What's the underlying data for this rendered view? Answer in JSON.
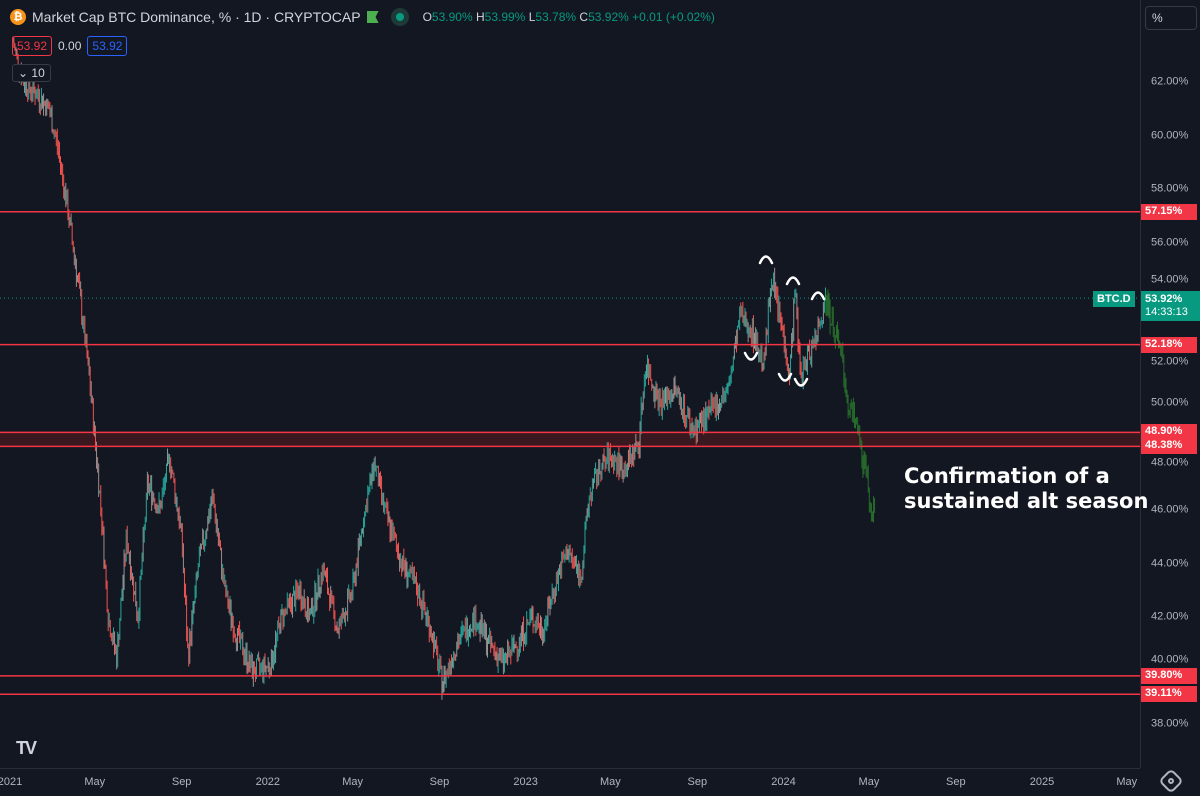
{
  "header": {
    "title": "Market Cap BTC Dominance, % · 1D · CRYPTOCAP",
    "coin_icon": "bitcoin-icon",
    "ohlc": {
      "o_label": "O",
      "o": "53.90%",
      "h_label": "H",
      "h": "53.99%",
      "l_label": "L",
      "l": "53.78%",
      "c_label": "C",
      "c": "53.92%",
      "change": "+0.01 (+0.02%)"
    },
    "bid": "53.92",
    "spread": "0.00",
    "ask": "53.92",
    "indicator_collapse": "10"
  },
  "colors": {
    "up": "#26a69a",
    "down": "#ef5350",
    "level": "#f23645",
    "projection": "#2e8b2e",
    "background": "#131722"
  },
  "yaxis": {
    "unit": "%"
  },
  "current": {
    "symbol": "BTC.D",
    "price": "53.92%",
    "countdown": "14:33:13"
  },
  "chart_data": {
    "type": "line",
    "title": "Market Cap BTC Dominance, % · 1D · CRYPTOCAP",
    "ylim": [
      36.7,
      65.1
    ],
    "y_ticks": [
      "62.00%",
      "60.00%",
      "58.00%",
      "56.00%",
      "54.00%",
      "52.00%",
      "50.00%",
      "48.00%",
      "46.00%",
      "44.00%",
      "42.00%",
      "40.00%",
      "38.00%"
    ],
    "y_tick_values": [
      62,
      60,
      58,
      56,
      54,
      52,
      50,
      48,
      46,
      44,
      42,
      40,
      38
    ],
    "x_ticks": [
      "2021",
      "May",
      "Sep",
      "2022",
      "May",
      "Sep",
      "2023",
      "May",
      "Sep",
      "2024",
      "May",
      "Sep",
      "2025",
      "May"
    ],
    "x_tick_dates": [
      "2021-01-01",
      "2021-05-01",
      "2021-09-01",
      "2022-01-01",
      "2022-05-01",
      "2022-09-01",
      "2023-01-01",
      "2023-05-01",
      "2023-09-01",
      "2024-01-01",
      "2024-05-01",
      "2024-09-01",
      "2025-01-01",
      "2025-05-01"
    ],
    "grid": false,
    "series": [
      {
        "style": "candlestick",
        "points": [
          [
            "2021-01-05",
            63.5
          ],
          [
            "2021-01-20",
            62
          ],
          [
            "2021-02-10",
            61.5
          ],
          [
            "2021-02-25",
            61
          ],
          [
            "2021-03-10",
            59.5
          ],
          [
            "2021-03-25",
            57
          ],
          [
            "2021-04-10",
            54
          ],
          [
            "2021-04-25",
            50.5
          ],
          [
            "2021-05-10",
            46
          ],
          [
            "2021-05-20",
            42
          ],
          [
            "2021-06-01",
            40.5
          ],
          [
            "2021-06-15",
            45
          ],
          [
            "2021-07-01",
            42
          ],
          [
            "2021-07-15",
            47
          ],
          [
            "2021-08-01",
            46
          ],
          [
            "2021-08-15",
            48
          ],
          [
            "2021-09-01",
            45
          ],
          [
            "2021-09-10",
            40.5
          ],
          [
            "2021-09-25",
            44
          ],
          [
            "2021-10-15",
            46.5
          ],
          [
            "2021-11-01",
            43
          ],
          [
            "2021-11-15",
            41.5
          ],
          [
            "2021-12-10",
            40
          ],
          [
            "2022-01-05",
            40.2
          ],
          [
            "2022-01-20",
            42
          ],
          [
            "2022-02-15",
            43
          ],
          [
            "2022-03-01",
            42
          ],
          [
            "2022-03-20",
            43.8
          ],
          [
            "2022-04-10",
            41.5
          ],
          [
            "2022-05-01",
            43
          ],
          [
            "2022-05-15",
            45.5
          ],
          [
            "2022-06-01",
            47.8
          ],
          [
            "2022-06-15",
            46
          ],
          [
            "2022-07-10",
            44
          ],
          [
            "2022-08-01",
            43
          ],
          [
            "2022-08-20",
            41.5
          ],
          [
            "2022-09-05",
            39.5
          ],
          [
            "2022-09-25",
            41
          ],
          [
            "2022-10-20",
            42
          ],
          [
            "2022-11-10",
            41
          ],
          [
            "2022-11-30",
            40.3
          ],
          [
            "2022-12-20",
            41
          ],
          [
            "2023-01-10",
            42
          ],
          [
            "2023-01-25",
            41.5
          ],
          [
            "2023-02-15",
            43.5
          ],
          [
            "2023-03-01",
            44.5
          ],
          [
            "2023-03-20",
            43.5
          ],
          [
            "2023-04-01",
            46.5
          ],
          [
            "2023-04-15",
            47.5
          ],
          [
            "2023-05-01",
            48
          ],
          [
            "2023-05-20",
            47.5
          ],
          [
            "2023-06-10",
            48.5
          ],
          [
            "2023-06-20",
            51.5
          ],
          [
            "2023-07-10",
            50
          ],
          [
            "2023-08-01",
            50.5
          ],
          [
            "2023-08-25",
            49
          ],
          [
            "2023-09-15",
            49.5
          ],
          [
            "2023-10-15",
            50.5
          ],
          [
            "2023-11-01",
            53.3
          ],
          [
            "2023-11-15",
            52.8
          ],
          [
            "2023-12-05",
            51.5
          ],
          [
            "2023-12-15",
            54.8
          ],
          [
            "2024-01-01",
            52.5
          ],
          [
            "2024-01-10",
            51
          ],
          [
            "2024-01-17",
            54.3
          ],
          [
            "2024-01-25",
            51
          ],
          [
            "2024-02-15",
            52.5
          ],
          [
            "2024-03-01",
            53.92
          ]
        ]
      },
      {
        "style": "projection",
        "points": [
          [
            "2024-03-01",
            53.92
          ],
          [
            "2024-03-15",
            52.5
          ],
          [
            "2024-03-25",
            51.5
          ],
          [
            "2024-04-01",
            50
          ],
          [
            "2024-04-15",
            49
          ],
          [
            "2024-04-25",
            47.5
          ],
          [
            "2024-05-05",
            46
          ],
          [
            "2024-05-10",
            45.5
          ]
        ]
      }
    ],
    "levels": [
      "57.15%",
      "52.18%",
      "48.90%",
      "48.38%",
      "39.80%",
      "39.11%"
    ],
    "level_values": [
      57.15,
      52.18,
      48.9,
      48.38,
      39.8,
      39.11
    ],
    "annotation": {
      "line1": "Confirmation of a",
      "line2": "sustained alt season"
    }
  }
}
